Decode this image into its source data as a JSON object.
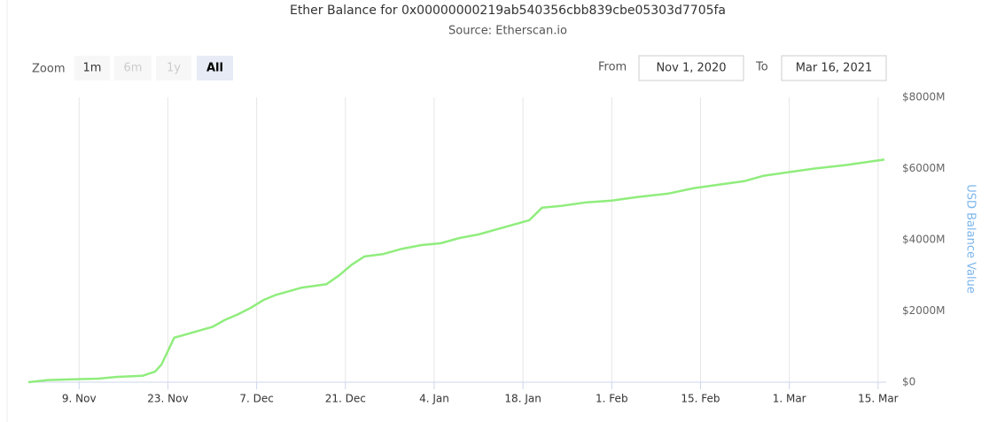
{
  "range_selector": {
    "zoom_label": "Zoom",
    "buttons": [
      "1m",
      "6m",
      "1y",
      "All"
    ],
    "selected": "All",
    "from_label": "From",
    "from": "Nov 1, 2020",
    "to_label": "To",
    "to": "Mar 16, 2021"
  },
  "chart_data": {
    "type": "line",
    "title": "Ether Balance for 0x00000000219ab540356cbb839cbe05303d7705fa",
    "subtitle": "Source: Etherscan.io",
    "y_label": "USD Balance Value",
    "x": [
      "2020-11-01",
      "2020-11-04",
      "2020-11-08",
      "2020-11-12",
      "2020-11-15",
      "2020-11-19",
      "2020-11-21",
      "2020-11-22",
      "2020-11-24",
      "2020-11-26",
      "2020-11-28",
      "2020-11-30",
      "2020-12-02",
      "2020-12-04",
      "2020-12-06",
      "2020-12-08",
      "2020-12-10",
      "2020-12-14",
      "2020-12-18",
      "2020-12-20",
      "2020-12-22",
      "2020-12-24",
      "2020-12-27",
      "2020-12-30",
      "2021-01-02",
      "2021-01-05",
      "2021-01-08",
      "2021-01-11",
      "2021-01-14",
      "2021-01-17",
      "2021-01-19",
      "2021-01-21",
      "2021-01-24",
      "2021-01-28",
      "2021-02-01",
      "2021-02-05",
      "2021-02-10",
      "2021-02-14",
      "2021-02-18",
      "2021-02-22",
      "2021-02-25",
      "2021-03-01",
      "2021-03-05",
      "2021-03-10",
      "2021-03-14",
      "2021-03-16"
    ],
    "series": [
      {
        "name": "USD Balance Value",
        "color": "#90ed7d",
        "values": [
          0,
          60,
          80,
          100,
          150,
          180,
          300,
          500,
          1250,
          1350,
          1450,
          1550,
          1750,
          1900,
          2080,
          2300,
          2450,
          2650,
          2750,
          3000,
          3300,
          3530,
          3600,
          3750,
          3850,
          3900,
          4050,
          4150,
          4300,
          4450,
          4550,
          4900,
          4950,
          5050,
          5100,
          5200,
          5300,
          5450,
          5550,
          5650,
          5800,
          5900,
          6000,
          6100,
          6200,
          6250
        ]
      }
    ],
    "xlim": [
      "2020-11-01",
      "2021-03-16"
    ],
    "xticks": [
      {
        "value": "2020-11-09",
        "label": "9. Nov"
      },
      {
        "value": "2020-11-23",
        "label": "23. Nov"
      },
      {
        "value": "2020-12-07",
        "label": "7. Dec"
      },
      {
        "value": "2020-12-21",
        "label": "21. Dec"
      },
      {
        "value": "2021-01-04",
        "label": "4. Jan"
      },
      {
        "value": "2021-01-18",
        "label": "18. Jan"
      },
      {
        "value": "2021-02-01",
        "label": "1. Feb"
      },
      {
        "value": "2021-02-15",
        "label": "15. Feb"
      },
      {
        "value": "2021-03-01",
        "label": "1. Mar"
      },
      {
        "value": "2021-03-15",
        "label": "15. Mar"
      }
    ],
    "ylim": [
      0,
      8000
    ],
    "yticks": [
      {
        "value": 0,
        "label": "$0"
      },
      {
        "value": 2000,
        "label": "$2000M"
      },
      {
        "value": 4000,
        "label": "$4000M"
      },
      {
        "value": 6000,
        "label": "$6000M"
      },
      {
        "value": 8000,
        "label": "$8000M"
      }
    ],
    "grid": "x"
  }
}
